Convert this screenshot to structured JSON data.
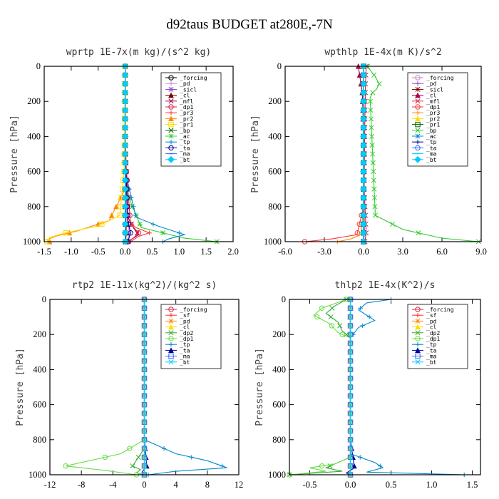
{
  "figure": {
    "title": "d92taus  BUDGET at280E,-7N"
  },
  "chart_data": [
    {
      "type": "line",
      "title": "wprtp  1E-7x(m kg)/(s^2 kg)",
      "ylabel": "Pressure [hPa]",
      "xlim": [
        -1.5,
        2.0
      ],
      "ylim": [
        1000,
        0
      ],
      "xticks": [
        "-1.5",
        "-1.0",
        "-0.5",
        "0.0",
        "0.5",
        "1.0",
        "1.5",
        "2.0"
      ],
      "yticks": [
        "0",
        "200",
        "400",
        "600",
        "800",
        "1000"
      ],
      "legend": "right",
      "series": [
        {
          "name": "_forcing",
          "color": "#000000",
          "x": [
            0,
            0,
            0,
            0,
            0,
            0
          ],
          "y": [
            0,
            200,
            400,
            600,
            800,
            1000
          ]
        },
        {
          "name": "_pd",
          "color": "#cc88cc",
          "x": [
            0,
            0,
            0.01,
            0.03,
            0.08,
            0.02
          ],
          "y": [
            0,
            300,
            600,
            850,
            960,
            1000
          ]
        },
        {
          "name": "_sicl",
          "color": "#8844cc",
          "x": [
            0,
            0,
            0,
            0,
            0,
            0
          ],
          "y": [
            0,
            200,
            400,
            600,
            800,
            1000
          ]
        },
        {
          "name": "_cl",
          "color": "#800000",
          "x": [
            0,
            0,
            0.01,
            0.02,
            0.01
          ],
          "y": [
            0,
            400,
            800,
            950,
            1000
          ]
        },
        {
          "name": "_mfl",
          "color": "#aa0044",
          "x": [
            0,
            0,
            0.05,
            0.15,
            0.25,
            0.05
          ],
          "y": [
            0,
            400,
            860,
            920,
            960,
            1000
          ]
        },
        {
          "name": "_dp1",
          "color": "#dd2244",
          "x": [
            0,
            0,
            0.1,
            0.25,
            0.15,
            0.05
          ],
          "y": [
            0,
            500,
            900,
            950,
            980,
            1000
          ]
        },
        {
          "name": "_pr3",
          "color": "#ff3333",
          "x": [
            0,
            0,
            0.05,
            0.2,
            0.45,
            0.25,
            0.1
          ],
          "y": [
            0,
            500,
            880,
            920,
            950,
            970,
            1000
          ]
        },
        {
          "name": "_pr2",
          "color": "#ff8800",
          "x": [
            0,
            0,
            -0.3,
            -0.9,
            -1.3,
            -1.45,
            -1.4
          ],
          "y": [
            0,
            700,
            880,
            940,
            970,
            990,
            1000
          ]
        },
        {
          "name": "_pr1",
          "color": "#ffdd00",
          "x": [
            0,
            -0.02,
            -0.1,
            -0.5,
            -1.1,
            -1.4,
            -1.45
          ],
          "y": [
            0,
            600,
            850,
            910,
            950,
            975,
            1000
          ]
        },
        {
          "name": "_bp",
          "color": "#006600",
          "x": [
            0,
            0,
            0,
            0,
            0
          ],
          "y": [
            0,
            300,
            600,
            900,
            1000
          ]
        },
        {
          "name": "_ac",
          "color": "#33cc33",
          "x": [
            0,
            0,
            0.3,
            1.1,
            1.7
          ],
          "y": [
            0,
            700,
            920,
            980,
            1000
          ]
        },
        {
          "name": "_tp",
          "color": "#0088cc",
          "x": [
            0,
            0,
            0.2,
            0.6,
            1.1,
            0.8,
            0.7
          ],
          "y": [
            0,
            600,
            860,
            910,
            960,
            985,
            1000
          ]
        },
        {
          "name": "_ta",
          "color": "#000099",
          "x": [
            0,
            0,
            0.05,
            0.1,
            0.05
          ],
          "y": [
            0,
            500,
            880,
            950,
            1000
          ]
        },
        {
          "name": "_ma",
          "color": "#3366ff",
          "x": [
            0,
            0,
            0,
            0,
            0
          ],
          "y": [
            0,
            300,
            600,
            900,
            1000
          ]
        },
        {
          "name": "_bt",
          "color": "#00ccff",
          "x": [
            0,
            0,
            0,
            0,
            0
          ],
          "y": [
            0,
            300,
            600,
            900,
            1000
          ]
        }
      ]
    },
    {
      "type": "line",
      "title": "wpthlp  1E-4x(m K)/s^2",
      "ylabel": "Pressure [hPa]",
      "xlim": [
        -6.0,
        9.0
      ],
      "ylim": [
        1000,
        0
      ],
      "xticks": [
        "-6.0",
        "-3.0",
        "0.0",
        "3.0",
        "6.0",
        "9.0"
      ],
      "yticks": [
        "0",
        "200",
        "400",
        "600",
        "800",
        "1000"
      ],
      "legend": "right",
      "series": [
        {
          "name": "_forcing",
          "color": "#cc88cc",
          "x": [
            0,
            0,
            0,
            0,
            0,
            0
          ],
          "y": [
            0,
            200,
            400,
            600,
            800,
            1000
          ]
        },
        {
          "name": "_pd",
          "color": "#8844cc",
          "x": [
            0,
            0,
            0.02,
            0.05,
            0.02
          ],
          "y": [
            0,
            400,
            800,
            950,
            1000
          ]
        },
        {
          "name": "_sicl",
          "color": "#800000",
          "x": [
            0,
            0,
            0,
            0,
            0
          ],
          "y": [
            0,
            300,
            600,
            900,
            1000
          ]
        },
        {
          "name": "_cl",
          "color": "#aa0044",
          "x": [
            -0.4,
            -0.3,
            -0.1,
            -0.05,
            0,
            0
          ],
          "y": [
            0,
            50,
            150,
            250,
            500,
            1000
          ]
        },
        {
          "name": "_mfl",
          "color": "#dd2244",
          "x": [
            0.2,
            0.15,
            0.1,
            0.05,
            0.2,
            0.1
          ],
          "y": [
            0,
            100,
            300,
            700,
            950,
            1000
          ]
        },
        {
          "name": "_dp1",
          "color": "#ff3333",
          "x": [
            0,
            0,
            -0.5,
            -2.5,
            -4.5
          ],
          "y": [
            0,
            800,
            960,
            985,
            1000
          ]
        },
        {
          "name": "_pr3",
          "color": "#ff8800",
          "x": [
            0,
            0,
            -0.2,
            -1.0,
            -2.0
          ],
          "y": [
            0,
            800,
            960,
            985,
            1000
          ]
        },
        {
          "name": "_pr2",
          "color": "#ffdd00",
          "x": [
            0,
            0,
            0,
            0,
            0
          ],
          "y": [
            0,
            300,
            600,
            900,
            1000
          ]
        },
        {
          "name": "_pr1",
          "color": "#006600",
          "x": [
            0,
            0,
            0,
            0,
            0
          ],
          "y": [
            0,
            300,
            600,
            900,
            1000
          ]
        },
        {
          "name": "_bp",
          "color": "#33cc33",
          "x": [
            0.3,
            0.6,
            0.9,
            1.2,
            1.0,
            0.7,
            0.5,
            0.9,
            3.0,
            6.0,
            8.8
          ],
          "y": [
            0,
            30,
            60,
            100,
            130,
            150,
            180,
            850,
            930,
            980,
            1000
          ]
        },
        {
          "name": "_ac",
          "color": "#0088cc",
          "x": [
            0,
            0,
            0,
            0,
            0
          ],
          "y": [
            0,
            300,
            600,
            900,
            1000
          ]
        },
        {
          "name": "_tp",
          "color": "#000099",
          "x": [
            0,
            0,
            0.05,
            0
          ],
          "y": [
            0,
            500,
            950,
            1000
          ]
        },
        {
          "name": "_ta",
          "color": "#3366ff",
          "x": [
            0,
            0,
            0,
            0,
            0
          ],
          "y": [
            0,
            300,
            600,
            900,
            1000
          ]
        },
        {
          "name": "_ma",
          "color": "#00ccff",
          "x": [
            0,
            0,
            0,
            0,
            0
          ],
          "y": [
            0,
            300,
            600,
            900,
            1000
          ]
        },
        {
          "name": "_bt",
          "color": "#00ccff",
          "x": [
            0,
            0,
            0,
            0,
            0
          ],
          "y": [
            0,
            300,
            600,
            900,
            1000
          ]
        }
      ]
    },
    {
      "type": "line",
      "title": "rtp2  1E-11x(kg^2)/(kg^2 s)",
      "ylabel": "Pressure [hPa]",
      "xlim": [
        -12,
        12
      ],
      "ylim": [
        1000,
        0
      ],
      "xticks": [
        "-12",
        "-8",
        "-4",
        "0",
        "4",
        "8",
        "12"
      ],
      "yticks": [
        "0",
        "200",
        "400",
        "600",
        "800",
        "1000"
      ],
      "legend": "right",
      "series": [
        {
          "name": "_forcing",
          "color": "#dd2244",
          "x": [
            0,
            0,
            0,
            0,
            0,
            0
          ],
          "y": [
            0,
            200,
            400,
            600,
            800,
            1000
          ]
        },
        {
          "name": "_sf",
          "color": "#ff3333",
          "x": [
            0,
            0,
            0,
            0,
            0
          ],
          "y": [
            0,
            300,
            600,
            900,
            1000
          ]
        },
        {
          "name": "_pd",
          "color": "#ff8800",
          "x": [
            0,
            0,
            0,
            0,
            0
          ],
          "y": [
            0,
            300,
            600,
            900,
            1000
          ]
        },
        {
          "name": "_cl",
          "color": "#ffdd00",
          "x": [
            0,
            0,
            0,
            0,
            0
          ],
          "y": [
            0,
            300,
            600,
            900,
            1000
          ]
        },
        {
          "name": "_dp2",
          "color": "#33aa33",
          "x": [
            0,
            0,
            -1.5,
            -0.5,
            -1.0,
            0
          ],
          "y": [
            0,
            850,
            950,
            970,
            990,
            1000
          ]
        },
        {
          "name": "_dp1",
          "color": "#66dd44",
          "x": [
            0,
            0,
            -3.0,
            -7.0,
            -10.0,
            -5.0,
            -1.0
          ],
          "y": [
            0,
            800,
            880,
            920,
            950,
            975,
            1000
          ]
        },
        {
          "name": "_tp",
          "color": "#0088cc",
          "x": [
            0,
            0,
            4.0,
            8.0,
            10.5,
            4.0,
            0.5
          ],
          "y": [
            0,
            800,
            880,
            920,
            960,
            980,
            1000
          ]
        },
        {
          "name": "_ta",
          "color": "#000099",
          "x": [
            0,
            0,
            0.3,
            -0.3,
            0
          ],
          "y": [
            0,
            800,
            950,
            985,
            1000
          ]
        },
        {
          "name": "_ma",
          "color": "#3366ff",
          "x": [
            0,
            0,
            0,
            0,
            0
          ],
          "y": [
            0,
            300,
            600,
            900,
            1000
          ]
        },
        {
          "name": "_bt",
          "color": "#00ccff",
          "x": [
            0,
            0,
            0,
            0,
            0
          ],
          "y": [
            0,
            300,
            600,
            900,
            1000
          ]
        }
      ]
    },
    {
      "type": "line",
      "title": "thlp2  1E-4x(K^2)/s",
      "ylabel": "Pressure [hPa]",
      "xlim": [
        -0.75,
        1.6
      ],
      "ylim": [
        1000,
        0
      ],
      "xticks": [
        "-0.5",
        "0.0",
        "0.5",
        "1.0",
        "1.5"
      ],
      "yticks": [
        "0",
        "200",
        "400",
        "600",
        "800",
        "1000"
      ],
      "legend": "right",
      "series": [
        {
          "name": "_forcing",
          "color": "#dd2244",
          "x": [
            0,
            0,
            0,
            0,
            0,
            0
          ],
          "y": [
            0,
            200,
            400,
            600,
            800,
            1000
          ]
        },
        {
          "name": "_sf",
          "color": "#ff3333",
          "x": [
            0,
            0,
            0,
            0,
            0
          ],
          "y": [
            0,
            300,
            600,
            900,
            1000
          ]
        },
        {
          "name": "_pd",
          "color": "#ff8800",
          "x": [
            0,
            0,
            0,
            0,
            0
          ],
          "y": [
            0,
            300,
            600,
            900,
            1000
          ]
        },
        {
          "name": "_cl",
          "color": "#ffdd00",
          "x": [
            0,
            0,
            0,
            0,
            0
          ],
          "y": [
            0,
            300,
            600,
            900,
            1000
          ]
        },
        {
          "name": "_dp2",
          "color": "#33aa33",
          "x": [
            -0.05,
            -0.2,
            -0.3,
            -0.15,
            -0.1,
            0,
            0,
            -0.2,
            -0.3,
            -0.1,
            -0.75
          ],
          "y": [
            0,
            40,
            80,
            130,
            180,
            220,
            900,
            940,
            960,
            980,
            1000
          ]
        },
        {
          "name": "_dp1",
          "color": "#66dd44",
          "x": [
            -0.05,
            -0.35,
            -0.45,
            -0.25,
            -0.15,
            0,
            0,
            -0.2,
            -0.5,
            -0.3,
            -0.75
          ],
          "y": [
            0,
            50,
            90,
            140,
            190,
            220,
            900,
            940,
            960,
            980,
            1000
          ]
        },
        {
          "name": "_tp",
          "color": "#0088cc",
          "x": [
            0.5,
            0.2,
            0.1,
            0.3,
            0.1,
            0,
            0,
            0.3,
            0.4,
            0.2,
            1.4
          ],
          "y": [
            0,
            20,
            60,
            120,
            160,
            220,
            880,
            930,
            960,
            985,
            1000
          ]
        },
        {
          "name": "_ta",
          "color": "#000099",
          "x": [
            0,
            0,
            0.05,
            -0.05,
            0
          ],
          "y": [
            0,
            800,
            960,
            990,
            1000
          ]
        },
        {
          "name": "_ma",
          "color": "#3366ff",
          "x": [
            0,
            0,
            0,
            0,
            0
          ],
          "y": [
            0,
            300,
            600,
            900,
            1000
          ]
        },
        {
          "name": "_bt",
          "color": "#00ccff",
          "x": [
            0,
            0,
            0,
            0,
            0
          ],
          "y": [
            0,
            300,
            600,
            900,
            1000
          ]
        }
      ]
    }
  ]
}
